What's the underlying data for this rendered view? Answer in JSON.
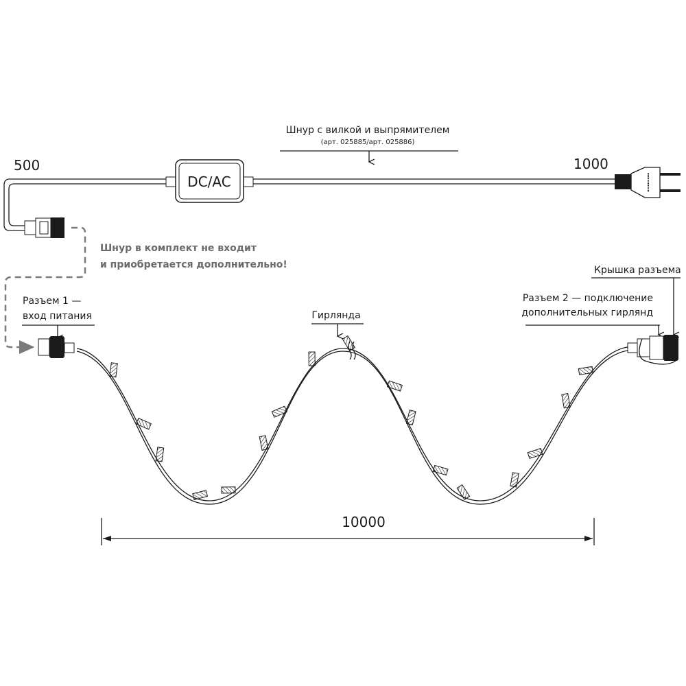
{
  "cord": {
    "title": "Шнур с вилкой и выпрямителем",
    "article": "(арт. 025885/арт. 025886)",
    "rectifier_label": "DC/AC",
    "length_left": "500",
    "length_right": "1000"
  },
  "note": {
    "line1": "Шнур в комплект не входит",
    "line2": "и приобретается дополнительно!"
  },
  "connector1": {
    "line1": "Разъем 1 —",
    "line2": "вход питания"
  },
  "garland": {
    "label": "Гирлянда",
    "length": "10000"
  },
  "connector2": {
    "line1": "Разъем 2 — подключение",
    "line2": "дополнительных гирлянд"
  },
  "cap": {
    "label": "Крышка разъема"
  },
  "colors": {
    "line": "#1a1a1a",
    "note": "#6b6b6b",
    "dashed": "#7a7a7a"
  }
}
